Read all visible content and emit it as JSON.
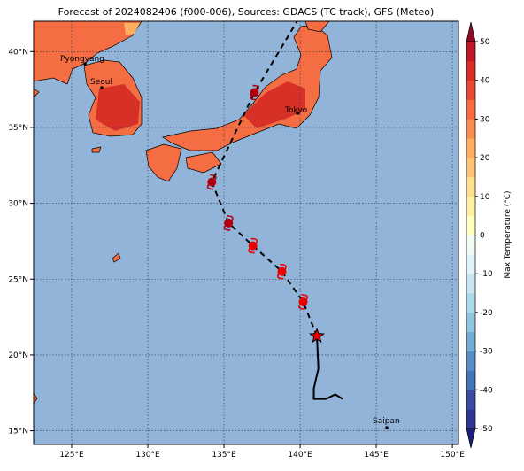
{
  "title": "Forecast of 2024082406 (f000-006), Sources: GDACS (TC track), GFS (Meteo)",
  "map": {
    "xlim": [
      122.5,
      150.4
    ],
    "ylim": [
      14.1,
      42
    ],
    "xticks": [
      {
        "value": 125,
        "label": "125°E"
      },
      {
        "value": 130,
        "label": "130°E"
      },
      {
        "value": 135,
        "label": "135°E"
      },
      {
        "value": 140,
        "label": "140°E"
      },
      {
        "value": 145,
        "label": "145°E"
      },
      {
        "value": 150,
        "label": "150°E"
      }
    ],
    "yticks": [
      {
        "value": 15,
        "label": "15°N"
      },
      {
        "value": 20,
        "label": "20°N"
      },
      {
        "value": 25,
        "label": "25°N"
      },
      {
        "value": 30,
        "label": "30°N"
      },
      {
        "value": 35,
        "label": "35°N"
      },
      {
        "value": 40,
        "label": "40°N"
      }
    ],
    "grid": true,
    "cities": [
      "Pyongyang",
      "Seoul",
      "Tokyo",
      "Saipan"
    ],
    "track": {
      "forecast_lon": [
        141.1,
        140.2,
        138.8,
        136.9,
        135.3,
        134.2,
        137.0,
        139.8
      ],
      "forecast_lat": [
        21.25,
        23.5,
        25.5,
        27.2,
        28.7,
        31.4,
        37.3,
        42
      ],
      "past_lon": [
        141.1,
        141.2,
        140.9,
        140.9,
        141.7,
        142.3,
        142.8
      ],
      "past_lat": [
        21.25,
        19.1,
        17.8,
        17.1,
        17.1,
        17.4,
        17.1
      ]
    }
  },
  "colorbar": {
    "label": "Max Temperature (°C)",
    "lim": [
      -50,
      50
    ],
    "ticks": [
      -50,
      -40,
      -30,
      -20,
      -10,
      0,
      10,
      20,
      30,
      40,
      50
    ],
    "colors": [
      "#313695",
      "#3a4da0",
      "#4575b4",
      "#5b8cc2",
      "#74add1",
      "#91c4de",
      "#abd9e9",
      "#c8e6f0",
      "#e0f3f8",
      "#f2faf4",
      "#ffffbf",
      "#fff0a8",
      "#fee090",
      "#fdc477",
      "#fdae61",
      "#f88d52",
      "#f46d43",
      "#e34b34",
      "#d73027",
      "#bd1a2b"
    ],
    "under": "#1a1f7a",
    "over": "#8e0c26"
  }
}
